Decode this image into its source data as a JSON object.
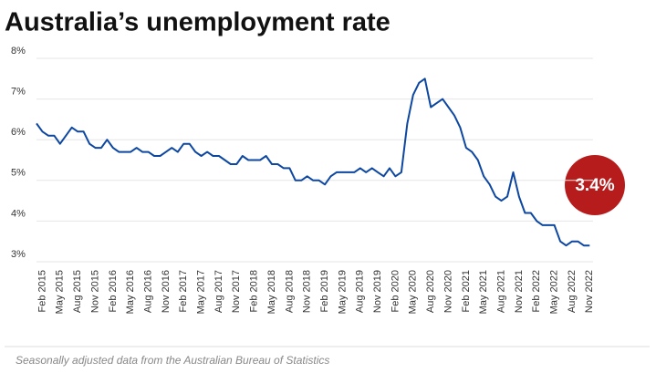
{
  "chart_data": {
    "type": "line",
    "title": "Australia’s unemployment rate",
    "annotation": "3.4%",
    "source": "Seasonally adjusted data from the Australian Bureau of Statistics",
    "categories": [
      null,
      "Feb 2015",
      null,
      null,
      "May 2015",
      null,
      null,
      "Aug 2015",
      null,
      null,
      "Nov 2015",
      null,
      null,
      "Feb 2016",
      null,
      null,
      "May 2016",
      null,
      null,
      "Aug 2016",
      null,
      null,
      "Nov 2016",
      null,
      null,
      "Feb 2017",
      null,
      null,
      "May 2017",
      null,
      null,
      "Aug 2017",
      null,
      null,
      "Nov 2017",
      null,
      null,
      "Feb 2018",
      null,
      null,
      "May 2018",
      null,
      null,
      "Aug 2018",
      null,
      null,
      "Nov 2018",
      null,
      null,
      "Feb 2019",
      null,
      null,
      "May 2019",
      null,
      null,
      "Aug 2019",
      null,
      null,
      "Nov 2019",
      null,
      null,
      "Feb 2020",
      null,
      null,
      "May 2020",
      null,
      null,
      "Aug 2020",
      null,
      null,
      "Nov 2020",
      null,
      null,
      "Feb 2021",
      null,
      null,
      "May 2021",
      null,
      null,
      "Aug 2021",
      null,
      null,
      "Nov 2021",
      null,
      null,
      "Feb 2022",
      null,
      null,
      "May 2022",
      null,
      null,
      "Aug 2022",
      null,
      null,
      "Nov 2022"
    ],
    "series": [
      {
        "name": "Unemployment rate",
        "color": "#0d47a1",
        "values": [
          6.4,
          6.2,
          6.1,
          6.1,
          5.9,
          6.1,
          6.3,
          6.2,
          6.2,
          5.9,
          5.8,
          5.8,
          6.0,
          5.8,
          5.7,
          5.7,
          5.7,
          5.8,
          5.7,
          5.7,
          5.6,
          5.6,
          5.7,
          5.8,
          5.7,
          5.9,
          5.9,
          5.7,
          5.6,
          5.7,
          5.6,
          5.6,
          5.5,
          5.4,
          5.4,
          5.6,
          5.5,
          5.5,
          5.5,
          5.6,
          5.4,
          5.4,
          5.3,
          5.3,
          5.0,
          5.0,
          5.1,
          5.0,
          5.0,
          4.9,
          5.1,
          5.2,
          5.2,
          5.2,
          5.2,
          5.3,
          5.2,
          5.3,
          5.2,
          5.1,
          5.3,
          5.1,
          5.2,
          6.4,
          7.1,
          7.4,
          7.5,
          6.8,
          6.9,
          7.0,
          6.8,
          6.6,
          6.3,
          5.8,
          5.7,
          5.5,
          5.1,
          4.9,
          4.6,
          4.5,
          4.6,
          5.2,
          4.6,
          4.2,
          4.2,
          4.0,
          3.9,
          3.9,
          3.9,
          3.5,
          3.4,
          3.5,
          3.5,
          3.4,
          3.4
        ]
      }
    ],
    "ylim": [
      3,
      8
    ],
    "yticks": [
      {
        "value": 3,
        "label": "3%"
      },
      {
        "value": 4,
        "label": "4%"
      },
      {
        "value": 5,
        "label": "5%"
      },
      {
        "value": 6,
        "label": "6%"
      },
      {
        "value": 7,
        "label": "7%"
      },
      {
        "value": 8,
        "label": "8%"
      }
    ],
    "grid": true
  }
}
